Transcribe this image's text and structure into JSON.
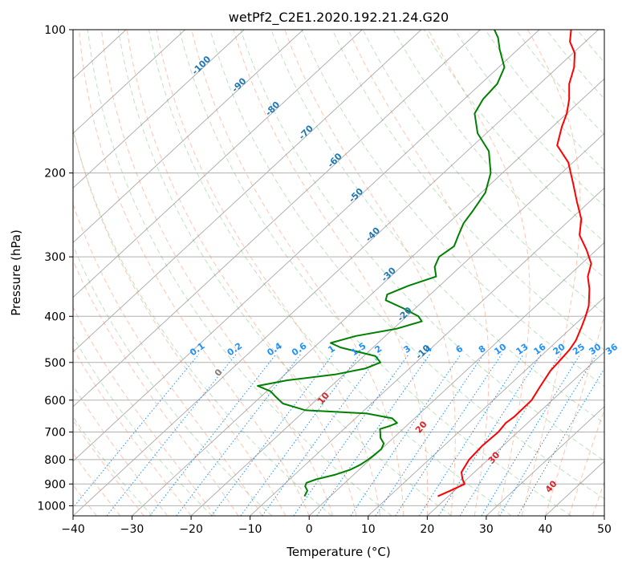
{
  "chart_data": {
    "type": "line",
    "title": "wetPf2_C2E1.2020.192.21.24.G20",
    "xlabel": "Temperature (°C)",
    "ylabel": "Pressure (hPa)",
    "xlim": [
      -40,
      50
    ],
    "ylim": [
      1050,
      100
    ],
    "y_scale": "log",
    "skew": true,
    "grid": true,
    "x_ticks": [
      -40,
      -30,
      -20,
      -10,
      0,
      10,
      20,
      30,
      40,
      50
    ],
    "x_tick_labels": [
      "−40",
      "−30",
      "−20",
      "−10",
      "0",
      "10",
      "20",
      "30",
      "40",
      "50"
    ],
    "y_ticks": [
      100,
      200,
      300,
      400,
      500,
      600,
      700,
      800,
      900,
      1000
    ],
    "y_tick_labels": [
      "100",
      "200",
      "300",
      "400",
      "500",
      "600",
      "700",
      "800",
      "900",
      "1000"
    ],
    "colors": {
      "temperature": "#ff0000",
      "dewpoint": "#008000",
      "isotherm_label": "#1f77b4",
      "mixing_ratio": "#1e90ff",
      "moist_adiabat": "#ff7f50",
      "dry_adiabat": "#2ca02c",
      "grid": "#b0b0b0"
    },
    "isotherm_labels": [
      "-100",
      "-90",
      "-80",
      "-70",
      "-60",
      "-50",
      "-40",
      "-30",
      "-20",
      "-10"
    ],
    "isotherm_label_values": [
      -100,
      -90,
      -80,
      -70,
      -60,
      -50,
      -40,
      -30,
      -20,
      -10
    ],
    "mixing_ratio_labels": [
      "0.1",
      "0.2",
      "0.4",
      "0.6",
      "1",
      "1.5",
      "2",
      "3",
      "4",
      "6",
      "8",
      "10",
      "13",
      "16",
      "20",
      "25",
      "30",
      "36"
    ],
    "mixing_ratio_values": [
      0.1,
      0.2,
      0.4,
      0.6,
      1,
      1.5,
      2,
      3,
      4,
      6,
      8,
      10,
      13,
      16,
      20,
      25,
      30,
      36
    ],
    "moist_adiabat_labels": [
      "0",
      "10",
      "20",
      "30",
      "40"
    ],
    "moist_adiabat_values": [
      0,
      10,
      20,
      30,
      40
    ],
    "series": [
      {
        "points": [
          [
            955,
            18.2
          ],
          [
            930,
            19.3
          ],
          [
            900,
            20.5
          ],
          [
            880,
            19.3
          ],
          [
            850,
            17.8
          ],
          [
            800,
            16.8
          ],
          [
            750,
            16.5
          ],
          [
            700,
            16.7
          ],
          [
            670,
            16.3
          ],
          [
            650,
            16.6
          ],
          [
            600,
            16.5
          ],
          [
            560,
            15.4
          ],
          [
            520,
            14.3
          ],
          [
            500,
            14.1
          ],
          [
            470,
            13.7
          ],
          [
            450,
            13.1
          ],
          [
            420,
            11.5
          ],
          [
            400,
            10.3
          ],
          [
            380,
            8.9
          ],
          [
            350,
            5.9
          ],
          [
            330,
            3.4
          ],
          [
            310,
            1.6
          ],
          [
            290,
            -1.7
          ],
          [
            270,
            -5.6
          ],
          [
            250,
            -8.2
          ],
          [
            230,
            -12.1
          ],
          [
            210,
            -16.2
          ],
          [
            190,
            -20.8
          ],
          [
            175,
            -25.8
          ],
          [
            160,
            -28.4
          ],
          [
            150,
            -30.0
          ],
          [
            140,
            -32.2
          ],
          [
            130,
            -35.0
          ],
          [
            120,
            -37.2
          ],
          [
            112,
            -39.7
          ],
          [
            106,
            -42.6
          ],
          [
            100,
            -44.6
          ]
        ]
      },
      {
        "points": [
          [
            955,
            -4.4
          ],
          [
            930,
            -4.9
          ],
          [
            910,
            -6.1
          ],
          [
            895,
            -6.5
          ],
          [
            880,
            -5.5
          ],
          [
            860,
            -3.1
          ],
          [
            840,
            -1.5
          ],
          [
            820,
            -0.7
          ],
          [
            800,
            -0.3
          ],
          [
            780,
            -0.1
          ],
          [
            760,
            0.0
          ],
          [
            740,
            -0.6
          ],
          [
            720,
            -2.2
          ],
          [
            700,
            -3.3
          ],
          [
            690,
            -3.9
          ],
          [
            680,
            -2.8
          ],
          [
            670,
            -2.1
          ],
          [
            655,
            -3.8
          ],
          [
            640,
            -9.0
          ],
          [
            630,
            -20.0
          ],
          [
            610,
            -25.0
          ],
          [
            590,
            -27.5
          ],
          [
            575,
            -29.3
          ],
          [
            560,
            -32.5
          ],
          [
            545,
            -28.5
          ],
          [
            530,
            -21.5
          ],
          [
            515,
            -17.5
          ],
          [
            500,
            -16.0
          ],
          [
            485,
            -18.0
          ],
          [
            465,
            -25.5
          ],
          [
            455,
            -28.0
          ],
          [
            440,
            -25.0
          ],
          [
            425,
            -19.5
          ],
          [
            410,
            -16.5
          ],
          [
            400,
            -18.0
          ],
          [
            385,
            -22.0
          ],
          [
            370,
            -26.5
          ],
          [
            360,
            -27.3
          ],
          [
            345,
            -25.3
          ],
          [
            330,
            -22.3
          ],
          [
            315,
            -24.3
          ],
          [
            300,
            -25.4
          ],
          [
            285,
            -24.8
          ],
          [
            270,
            -26.1
          ],
          [
            255,
            -27.4
          ],
          [
            240,
            -28.1
          ],
          [
            220,
            -29.3
          ],
          [
            200,
            -32.0
          ],
          [
            180,
            -36.3
          ],
          [
            165,
            -41.5
          ],
          [
            150,
            -45.6
          ],
          [
            140,
            -46.8
          ],
          [
            130,
            -47.2
          ],
          [
            120,
            -49.0
          ],
          [
            110,
            -53.1
          ],
          [
            104,
            -55.5
          ],
          [
            100,
            -57.6
          ]
        ]
      }
    ]
  }
}
